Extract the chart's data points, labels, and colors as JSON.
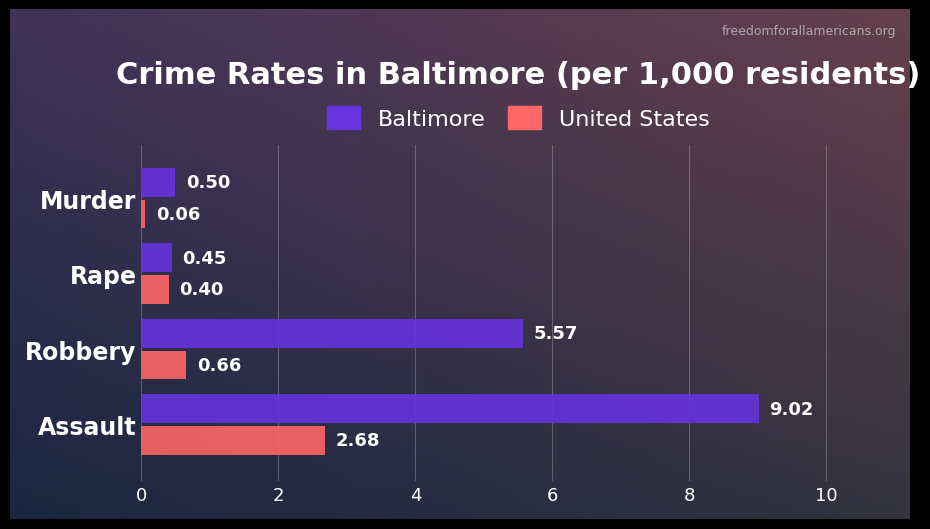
{
  "title": "Crime Rates in Baltimore (per 1,000 residents)",
  "watermark": "freedomforallamericans.org",
  "categories": [
    "Assault",
    "Robbery",
    "Rape",
    "Murder"
  ],
  "baltimore_values": [
    9.02,
    5.57,
    0.45,
    0.5
  ],
  "us_values": [
    2.68,
    0.66,
    0.4,
    0.06
  ],
  "baltimore_color": "#6633DD",
  "us_color": "#FF6666",
  "bar_alpha": 0.9,
  "title_color": "#FFFFFF",
  "label_color": "#FFFFFF",
  "tick_color": "#FFFFFF",
  "value_label_color": "#FFFFFF",
  "watermark_color": "#BBBBBB",
  "xlim": [
    0,
    11.0
  ],
  "xticks": [
    0,
    2,
    4,
    6,
    8,
    10
  ],
  "bar_height": 0.38,
  "legend_labels": [
    "Baltimore",
    "United States"
  ],
  "grid_color": "#AAAAAA",
  "title_fontsize": 22,
  "label_fontsize": 17,
  "value_fontsize": 13,
  "watermark_fontsize": 9,
  "legend_fontsize": 16,
  "tick_fontsize": 13
}
